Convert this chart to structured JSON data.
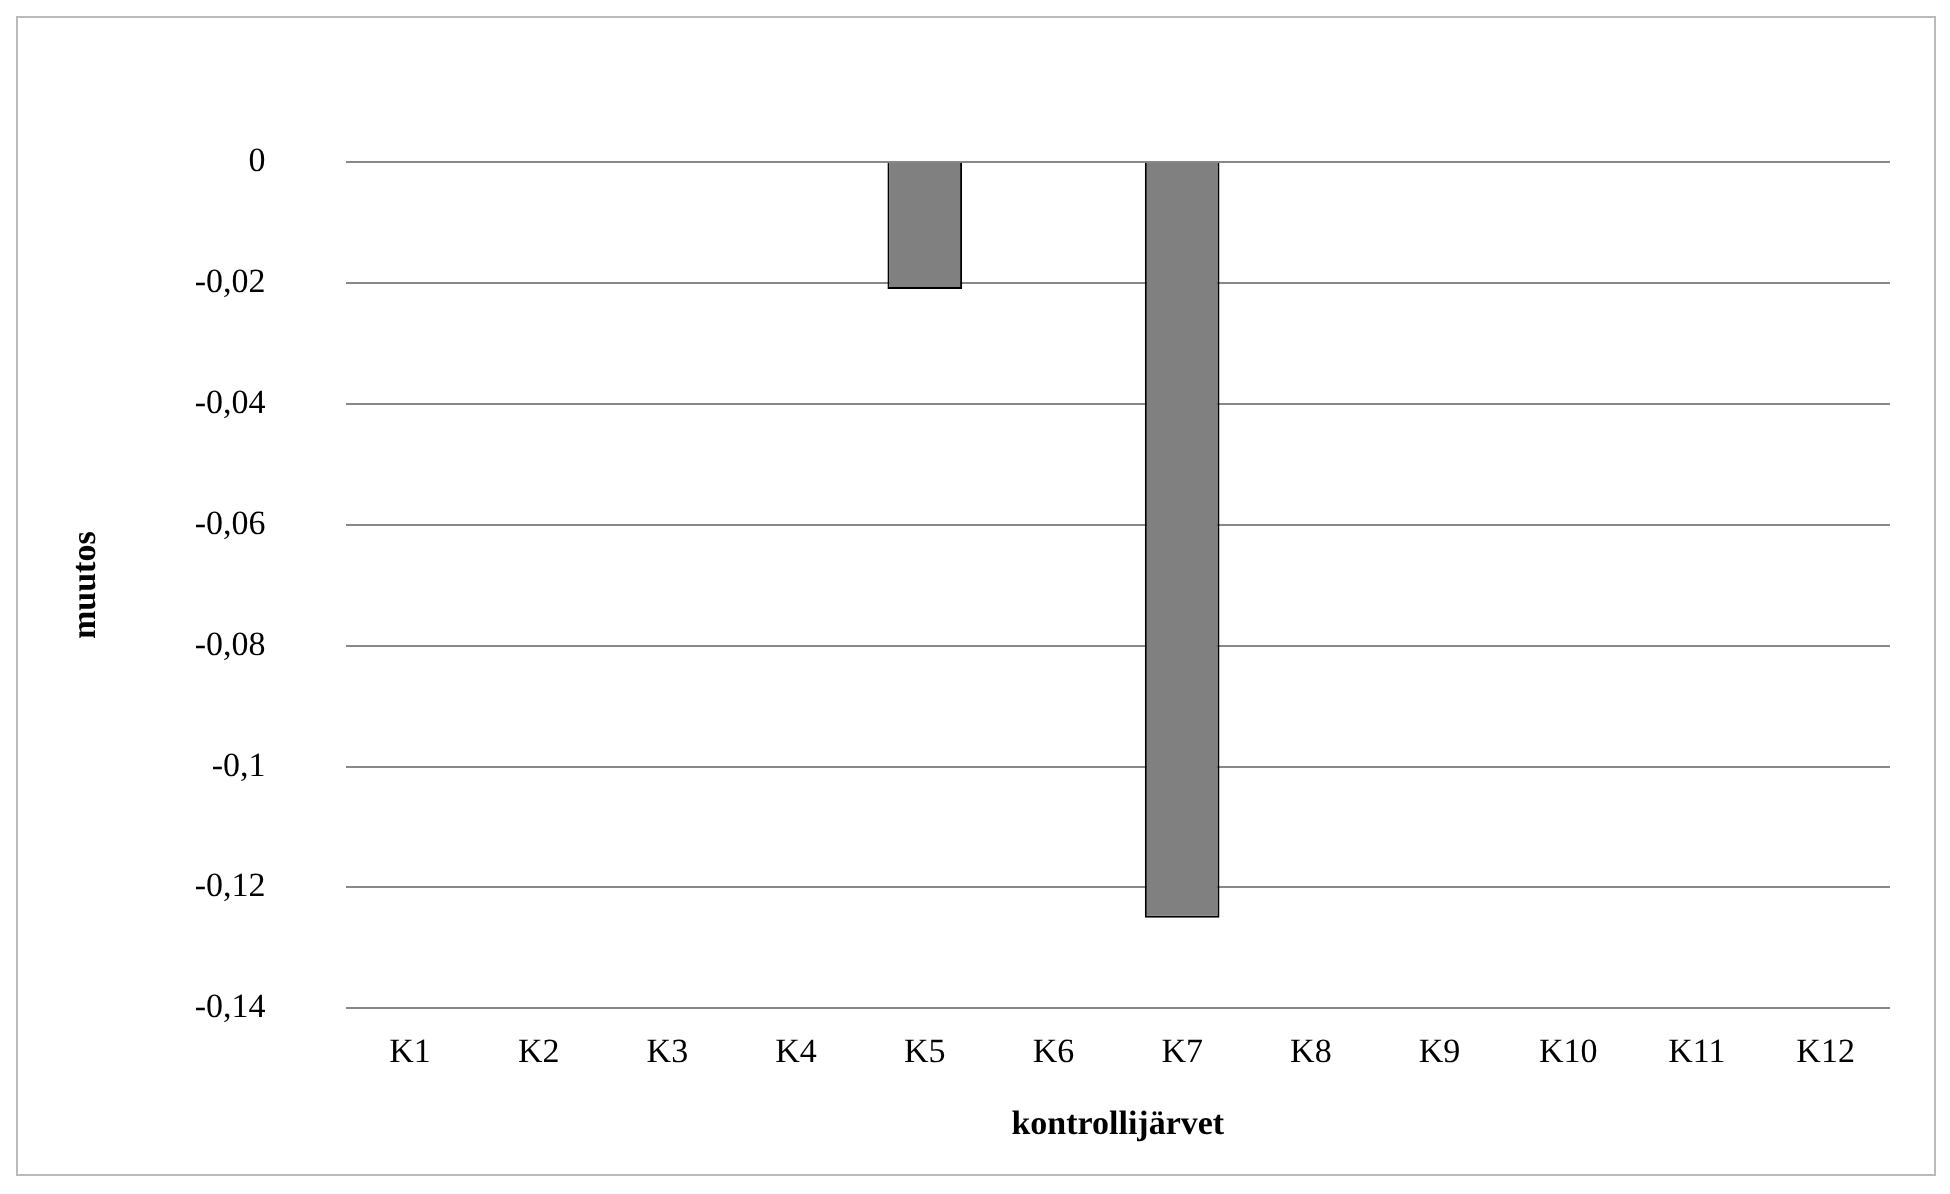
{
  "chart_data": {
    "type": "bar",
    "categories": [
      "K1",
      "K2",
      "K3",
      "K4",
      "K5",
      "K6",
      "K7",
      "K8",
      "K9",
      "K10",
      "K11",
      "K12"
    ],
    "values": [
      0,
      0,
      0,
      0,
      -0.021,
      0,
      -0.125,
      0,
      0,
      0,
      0,
      0
    ],
    "color": "#808080",
    "xlabel": "kontrollijärvet",
    "ylabel": "muutos",
    "ylim": [
      -0.14,
      0
    ],
    "yticks": [
      {
        "value": 0,
        "label": "0"
      },
      {
        "value": -0.02,
        "label": "-0,02"
      },
      {
        "value": -0.04,
        "label": "-0,04"
      },
      {
        "value": -0.06,
        "label": "-0,06"
      },
      {
        "value": -0.08,
        "label": "-0,08"
      },
      {
        "value": -0.1,
        "label": "-0,1"
      },
      {
        "value": -0.12,
        "label": "-0,12"
      },
      {
        "value": -0.14,
        "label": "-0,14"
      }
    ],
    "grid": "y",
    "legend": false
  }
}
